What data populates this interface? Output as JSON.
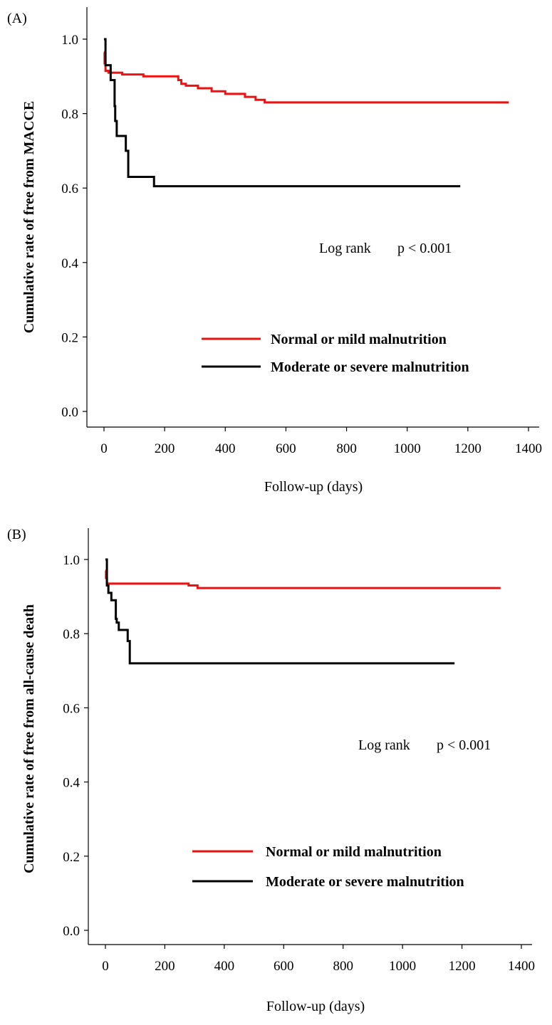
{
  "chart_data": [
    {
      "type": "line",
      "panel_label": "(A)",
      "xlabel": "Follow-up (days)",
      "ylabel": "Cumulative rate of free from MACCE",
      "xlim": [
        0,
        1400
      ],
      "ylim": [
        0,
        1
      ],
      "xticks": [
        0,
        200,
        400,
        600,
        800,
        1000,
        1200,
        1400
      ],
      "yticks": [
        0.0,
        0.2,
        0.4,
        0.6,
        0.8,
        1.0
      ],
      "ytick_labels": [
        "0.0",
        "0.2",
        "0.4",
        "0.6",
        "0.8",
        "1.0"
      ],
      "annotation": {
        "label": "Log rank",
        "value": "p < 0.001"
      },
      "legend": "center-right",
      "series": [
        {
          "name": "Normal or mild malnutrition",
          "color": "#ee1111",
          "x": [
            0,
            2,
            5,
            15,
            60,
            130,
            245,
            255,
            270,
            310,
            355,
            400,
            465,
            500,
            530,
            1335
          ],
          "y": [
            0.965,
            0.935,
            0.915,
            0.91,
            0.905,
            0.9,
            0.89,
            0.88,
            0.875,
            0.868,
            0.86,
            0.853,
            0.845,
            0.837,
            0.83,
            0.83
          ]
        },
        {
          "name": "Moderate or severe malnutrition",
          "color": "#000000",
          "x": [
            0,
            5,
            22,
            25,
            35,
            37,
            42,
            72,
            80,
            165,
            1175
          ],
          "y": [
            1.0,
            0.93,
            0.89,
            0.89,
            0.82,
            0.78,
            0.74,
            0.7,
            0.63,
            0.605,
            0.605
          ]
        }
      ]
    },
    {
      "type": "line",
      "panel_label": "(B)",
      "xlabel": "Follow-up (days)",
      "ylabel": "Cumulative rate of free from all-cause death",
      "xlim": [
        0,
        1400
      ],
      "ylim": [
        0,
        1
      ],
      "xticks": [
        0,
        200,
        400,
        600,
        800,
        1000,
        1200,
        1400
      ],
      "yticks": [
        0.0,
        0.2,
        0.4,
        0.6,
        0.8,
        1.0
      ],
      "ytick_labels": [
        "0.0",
        "0.2",
        "0.4",
        "0.6",
        "0.8",
        "1.0"
      ],
      "annotation": {
        "label": "Log rank",
        "value": "p < 0.001"
      },
      "legend": "center-right",
      "series": [
        {
          "name": "Normal or mild malnutrition",
          "color": "#ee1111",
          "x": [
            0,
            2,
            5,
            280,
            310,
            1330
          ],
          "y": [
            0.97,
            0.95,
            0.935,
            0.93,
            0.923,
            0.923
          ]
        },
        {
          "name": "Moderate or severe malnutrition",
          "color": "#000000",
          "x": [
            0,
            5,
            10,
            20,
            35,
            38,
            45,
            75,
            82,
            1175
          ],
          "y": [
            1.0,
            0.93,
            0.91,
            0.89,
            0.84,
            0.83,
            0.81,
            0.78,
            0.72,
            0.72
          ]
        }
      ]
    }
  ]
}
